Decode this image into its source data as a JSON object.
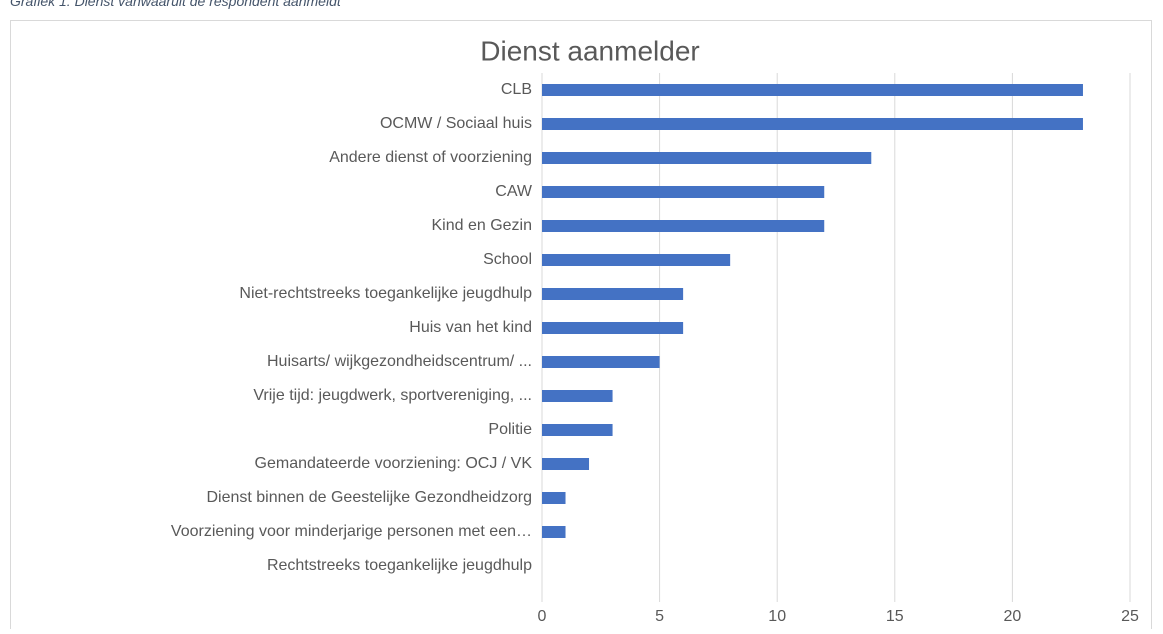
{
  "caption": "Grafiek 1: Dienst vanwaaruit de respondent aanmeldt",
  "chart_data": {
    "type": "barh",
    "title": "Dienst aanmelder",
    "categories": [
      "CLB",
      "OCMW / Sociaal huis",
      "Andere dienst of voorziening",
      "CAW",
      "Kind en Gezin",
      "School",
      "Niet-rechtstreeks toegankelijke jeugdhulp",
      "Huis van het kind",
      "Huisarts/ wijkgezondheidscentrum/ ...",
      "Vrije tijd: jeugdwerk, sportvereniging, ...",
      "Politie",
      "Gemandateerde voorziening: OCJ / VK",
      "Dienst binnen de Geestelijke Gezondheidzorg",
      "Voorziening voor minderjarige personen met een…",
      "Rechtstreeks toegankelijke jeugdhulp"
    ],
    "values": [
      23,
      23,
      14,
      12,
      12,
      8,
      6,
      6,
      5,
      3,
      3,
      2,
      1,
      1,
      0
    ],
    "color": "#4472c4",
    "xlim": [
      0,
      25
    ],
    "xticks": [
      0,
      5,
      10,
      15,
      20,
      25
    ],
    "grid": true
  }
}
